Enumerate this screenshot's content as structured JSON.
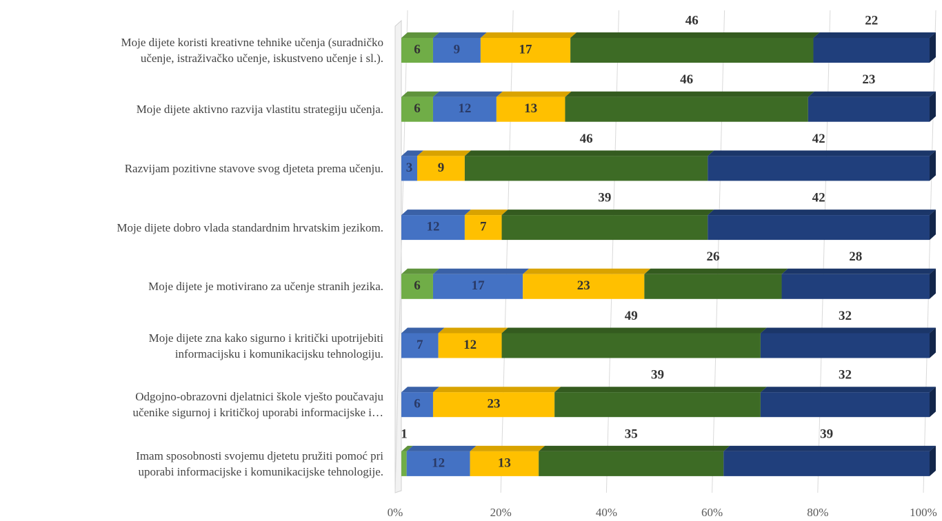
{
  "chart_data": {
    "type": "bar",
    "orientation": "horizontal",
    "stacked": true,
    "categories": [
      "Moje dijete koristi kreativne tehnike učenja (suradničko\nučenje, istraživačko učenje, iskustveno učenje i sl.).",
      "Moje dijete aktivno razvija vlastitu strategiju učenja.",
      "Razvijam pozitivne stavove svog djeteta prema učenju.",
      "Moje dijete dobro vlada standardnim hrvatskim jezikom.",
      "Moje dijete je motivirano za učenje stranih jezika.",
      "Moje dijete zna kako sigurno i kritički upotrijebiti\ninformacijsku i komunikacijsku tehnologiju.",
      "Odgojno-obrazovni djelatnici škole vješto poučavaju\nučenike sigurnoj i kritičkoj uporabi informacijske i…",
      "Imam sposobnosti svojemu djetetu pružiti pomoć pri\nuporabi informacijske i komunikacijske tehnologije."
    ],
    "series": [
      {
        "color": "#70ad47",
        "values": [
          6,
          6,
          0,
          0,
          6,
          0,
          0,
          1
        ]
      },
      {
        "color": "#4472c4",
        "values": [
          9,
          12,
          3,
          12,
          17,
          7,
          6,
          12
        ]
      },
      {
        "color": "#ffc000",
        "values": [
          17,
          13,
          9,
          7,
          23,
          12,
          23,
          13
        ]
      },
      {
        "color": "#3d6b25",
        "values": [
          46,
          46,
          46,
          39,
          26,
          49,
          39,
          35
        ]
      },
      {
        "color": "#203f7c",
        "values": [
          22,
          23,
          42,
          42,
          28,
          32,
          32,
          39
        ]
      }
    ],
    "xlim": [
      0,
      100
    ],
    "xticks": [
      {
        "value": 0,
        "label": "0%"
      },
      {
        "value": 20,
        "label": "20%"
      },
      {
        "value": 40,
        "label": "40%"
      },
      {
        "value": 60,
        "label": "60%"
      },
      {
        "value": 80,
        "label": "80%"
      },
      {
        "value": 100,
        "label": "100%"
      }
    ],
    "grid": true
  }
}
